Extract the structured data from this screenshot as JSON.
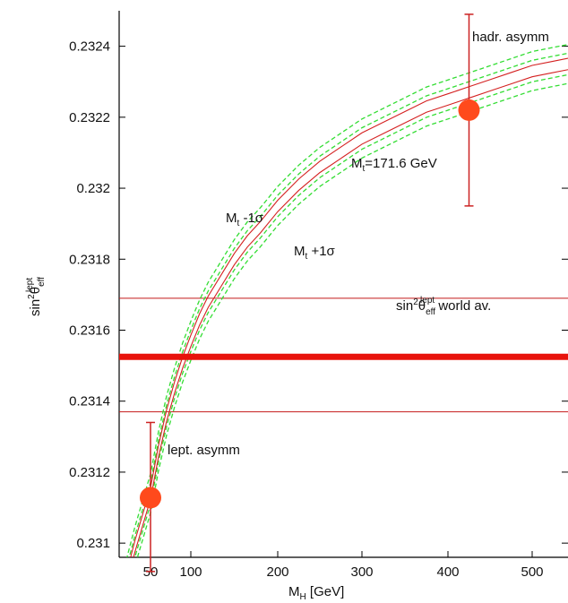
{
  "chart_data": {
    "type": "line",
    "xlabel": {
      "main": "M",
      "sub": "H",
      "rest": " [GeV]"
    },
    "ylabel": {
      "pre": "sin",
      "sup1": "2",
      "theta": "θ",
      "sub": "eff",
      "sup2": "lept"
    },
    "xlim": [
      30,
      540
    ],
    "ylim": [
      0.23096,
      0.2325
    ],
    "x_ticks": [
      {
        "value": 50,
        "label": "50"
      },
      {
        "value": 100,
        "label": "100"
      },
      {
        "value": 200,
        "label": "200"
      },
      {
        "value": 300,
        "label": "300"
      },
      {
        "value": 400,
        "label": "400"
      },
      {
        "value": 500,
        "label": "500"
      }
    ],
    "y_ticks": [
      {
        "value": 0.231,
        "label": "0.231"
      },
      {
        "value": 0.2312,
        "label": "0.2312"
      },
      {
        "value": 0.2314,
        "label": "0.2314"
      },
      {
        "value": 0.2316,
        "label": "0.2316"
      },
      {
        "value": 0.2318,
        "label": "0.2318"
      },
      {
        "value": 0.232,
        "label": "0.232"
      },
      {
        "value": 0.2322,
        "label": "0.2322"
      },
      {
        "value": 0.2324,
        "label": "0.2324"
      }
    ],
    "curve_x": [
      30,
      40,
      50,
      60,
      70,
      80,
      90,
      100,
      110,
      120,
      135,
      150,
      165,
      180,
      200,
      225,
      250,
      275,
      300,
      325,
      350,
      375,
      400,
      425,
      450,
      475,
      500,
      520,
      540
    ],
    "curve_y": [
      0.23082,
      0.23099,
      0.23114,
      0.23126,
      0.23136,
      0.23144,
      0.23151,
      0.23157,
      0.23163,
      0.23168,
      0.23174,
      0.2318,
      0.23185,
      0.23189,
      0.23195,
      0.23201,
      0.23206,
      0.2321,
      0.23214,
      0.23217,
      0.2322,
      0.23223,
      0.23225,
      0.23227,
      0.23229,
      0.23231,
      0.23233,
      0.23234,
      0.23235
    ],
    "band_outer": 5.5e-05,
    "band_inner": 1.6e-05,
    "world_average": {
      "value": 0.231525,
      "lower": 0.23137,
      "upper": 0.23169
    },
    "points": [
      {
        "label": "lept. asymm",
        "x": 50,
        "y": 0.231128,
        "yerr_low": 0.23092,
        "yerr_high": 0.23134
      },
      {
        "label": "hadr. asymm",
        "x": 425,
        "y": 0.23222,
        "yerr_low": 0.23195,
        "yerr_high": 0.23249
      }
    ],
    "annotations": {
      "mt_central": "Mₜ=171.6 GeV",
      "mt_central_pre": "M",
      "mt_central_sub": "t",
      "mt_central_rest": "=171.6 GeV",
      "mt_minus_pre": "M",
      "mt_minus_sub": "t",
      "mt_minus_rest": " -1σ",
      "mt_plus_pre": "M",
      "mt_plus_sub": "t",
      "mt_plus_rest": " +1σ",
      "world_pre": "sin",
      "world_sup1": "2",
      "world_theta": "θ",
      "world_sub": "eff",
      "world_sup2": "lept",
      "world_rest": " world av."
    },
    "colors": {
      "curve": "#d42020",
      "band_outer": "#33dd33",
      "world_average": "#e8130c",
      "world_band": "#c41a1a",
      "point": "#ff4a1c",
      "errorbar": "#cc2222"
    }
  }
}
